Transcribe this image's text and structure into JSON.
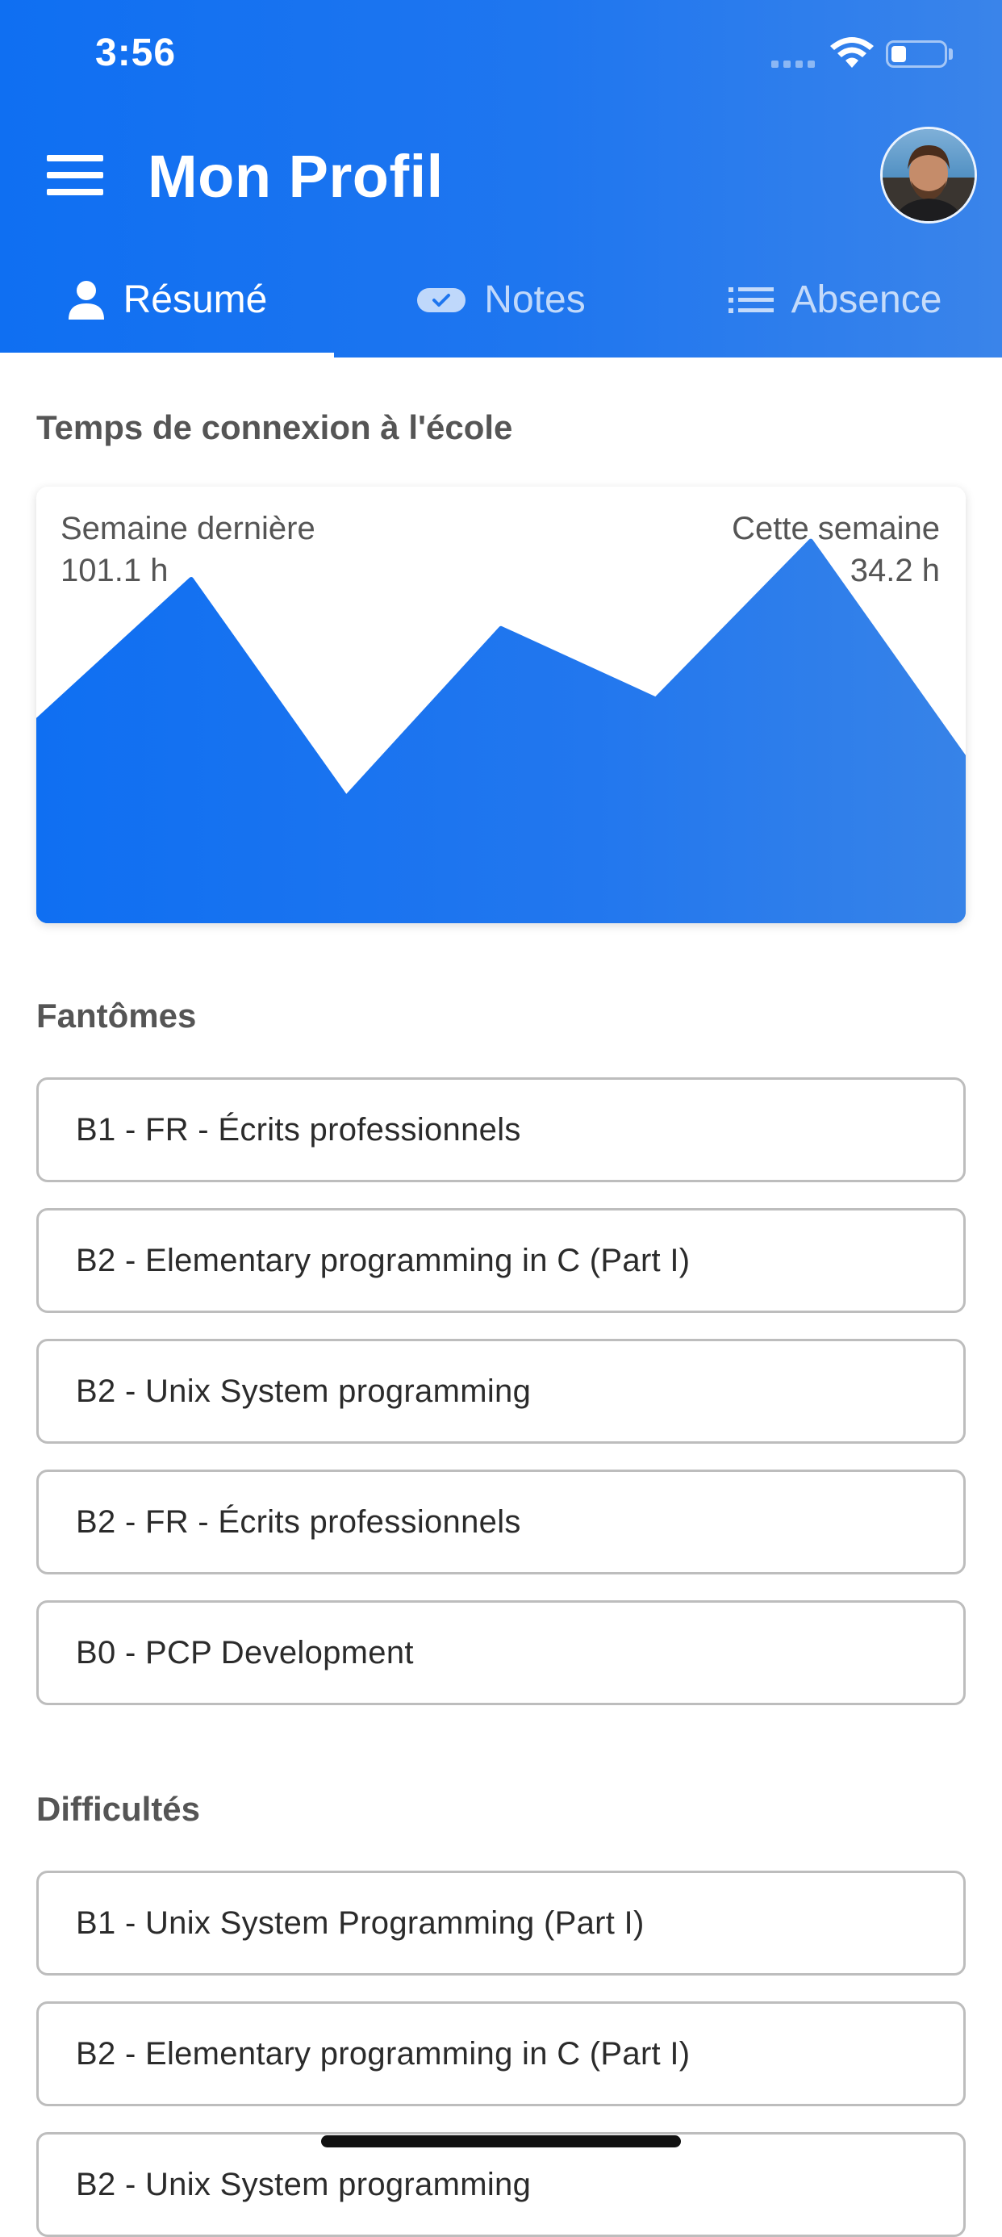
{
  "status_bar": {
    "time": "3:56",
    "icons": [
      "cellular-signal-icon",
      "wifi-icon",
      "battery-icon"
    ]
  },
  "header": {
    "title": "Mon Profil",
    "menu_icon": "hamburger-menu-icon",
    "avatar": "user-avatar"
  },
  "tabs": [
    {
      "label": "Résumé",
      "icon": "person-icon",
      "active": true
    },
    {
      "label": "Notes",
      "icon": "ticket-check-icon",
      "active": false
    },
    {
      "label": "Absence",
      "icon": "list-icon",
      "active": false
    }
  ],
  "connection": {
    "title": "Temps de connexion à l'école",
    "last_week_label": "Semaine dernière",
    "last_week_value": "101.1 h",
    "this_week_label": "Cette semaine",
    "this_week_value": "34.2 h"
  },
  "chart_data": {
    "type": "area",
    "x": [
      0,
      1,
      2,
      3,
      4,
      5,
      6
    ],
    "values": [
      18.5,
      31.5,
      11.5,
      27,
      20.5,
      35,
      15
    ],
    "title": "",
    "xlabel": "",
    "ylabel": "",
    "color": "#1773f0",
    "grid": false
  },
  "fantomes": {
    "title": "Fantômes",
    "items": [
      "B1 - FR - Écrits professionnels",
      "B2 - Elementary programming in C (Part I)",
      "B2 - Unix System programming",
      "B2 - FR - Écrits professionnels",
      "B0 - PCP Development"
    ]
  },
  "difficultes": {
    "title": "Difficultés",
    "items": [
      "B1 - Unix System Programming (Part I)",
      "B2 - Elementary programming in C (Part I)",
      "B2 - Unix System programming"
    ]
  },
  "colors": {
    "primary": "#1773f0",
    "header_gradient_end": "#3a84ea",
    "text_muted": "#555555",
    "border": "#bdbdbd"
  }
}
